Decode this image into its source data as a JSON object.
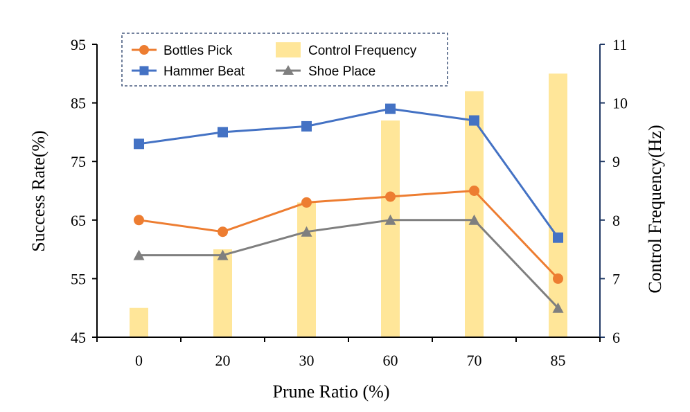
{
  "chart_data": {
    "type": "bar+line",
    "categories": [
      "0",
      "20",
      "30",
      "60",
      "70",
      "85"
    ],
    "xlabel": "Prune Ratio (%)",
    "ylabel_left": "Success Rate(%)",
    "ylabel_right": "Control Frequency(Hz)",
    "ylim_left": [
      45,
      95
    ],
    "yticks_left": [
      "45",
      "55",
      "65",
      "75",
      "85",
      "95"
    ],
    "ylim_right": [
      6,
      11
    ],
    "yticks_right": [
      "6",
      "7",
      "8",
      "9",
      "10",
      "11"
    ],
    "bars": {
      "name": "Control Frequency",
      "axis": "right",
      "color": "#FFE699",
      "values": [
        6.5,
        7.5,
        8.3,
        9.7,
        10.2,
        10.5
      ]
    },
    "series": [
      {
        "name": "Bottles Pick",
        "axis": "left",
        "color": "#ED7D31",
        "marker": "circle",
        "values": [
          65,
          63,
          68,
          69,
          70,
          55
        ]
      },
      {
        "name": "Hammer Beat",
        "axis": "left",
        "color": "#4472C4",
        "marker": "square",
        "values": [
          78,
          80,
          81,
          84,
          82,
          62
        ]
      },
      {
        "name": "Shoe Place",
        "axis": "left",
        "color": "#7F7F7F",
        "marker": "triangle",
        "values": [
          59,
          59,
          63,
          65,
          65,
          50
        ]
      }
    ],
    "legend": {
      "position": "top-left",
      "items": [
        "Bottles Pick",
        "Control Frequency",
        "Hammer Beat",
        "Shoe Place"
      ]
    },
    "right_axis_color": "#203864"
  }
}
